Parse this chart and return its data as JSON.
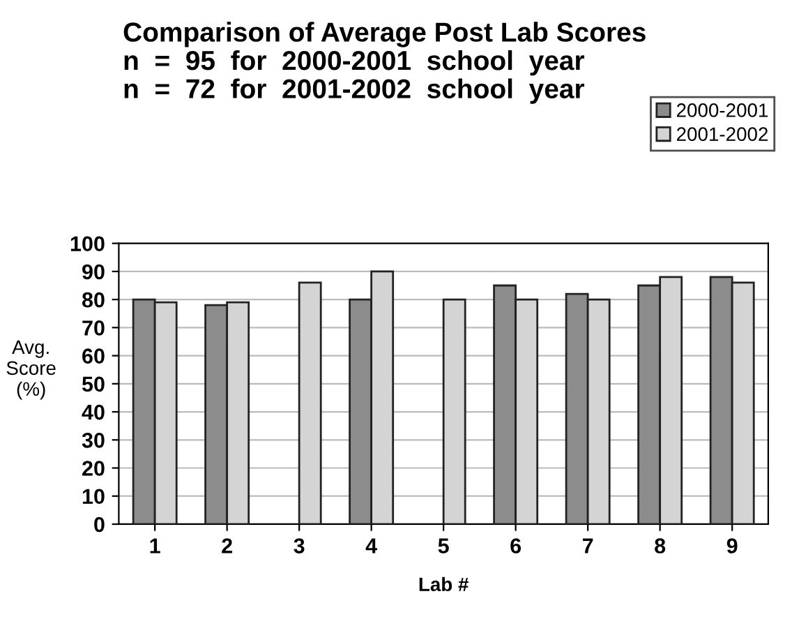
{
  "chart_data": {
    "type": "bar",
    "title": "Comparison of Average Post Lab Scores\nn  =  95  for  2000-2001  school  year\nn  =  72  for  2001-2002  school  year",
    "xlabel": "Lab #",
    "ylabel": "Avg.\nScore\n(%)",
    "categories": [
      "1",
      "2",
      "3",
      "4",
      "5",
      "6",
      "7",
      "8",
      "9"
    ],
    "series": [
      {
        "name": "2000-2001",
        "color": "#8c8c8c",
        "values": [
          80,
          78,
          null,
          80,
          null,
          85,
          82,
          85,
          88
        ]
      },
      {
        "name": "2001-2002",
        "color": "#d4d4d4",
        "values": [
          79,
          79,
          86,
          90,
          80,
          80,
          80,
          88,
          86
        ]
      }
    ],
    "ylim": [
      0,
      100
    ],
    "yticks": [
      0,
      10,
      20,
      30,
      40,
      50,
      60,
      70,
      80,
      90,
      100
    ],
    "grid": "y",
    "legend": "top right"
  }
}
